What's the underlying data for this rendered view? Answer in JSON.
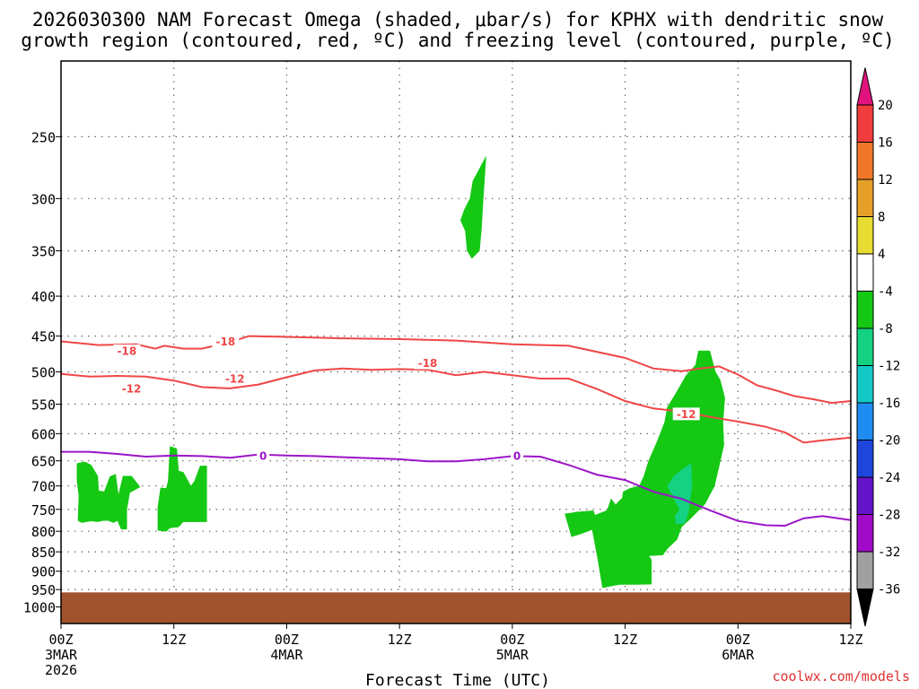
{
  "title_line1": "2026030300 NAM Forecast Omega (shaded, μbar/s) for KPHX with dendritic snow",
  "title_line2": "growth region (contoured, red, ºC) and freezing level (contoured, purple, ºC)",
  "credit": "coolwx.com/models",
  "chart_data": {
    "type": "area",
    "title": "2026030300 NAM Forecast Omega (shaded, μbar/s) for KPHX with dendritic snow growth region (contoured, red, ºC) and freezing level (contoured, purple, ºC)",
    "xlabel": "Forecast Time (UTC)",
    "ylabel": "",
    "x_range_hours": [
      0,
      84
    ],
    "y_axis": {
      "scale": "log",
      "reversed": true,
      "units": "hPa",
      "range": [
        1050,
        200
      ]
    },
    "grid": true,
    "x_ticks": [
      {
        "hour": 0,
        "line1": "00Z",
        "line2": "3MAR",
        "line3": "2026"
      },
      {
        "hour": 12,
        "line1": "12Z",
        "line2": "",
        "line3": ""
      },
      {
        "hour": 24,
        "line1": "00Z",
        "line2": "4MAR",
        "line3": ""
      },
      {
        "hour": 36,
        "line1": "12Z",
        "line2": "",
        "line3": ""
      },
      {
        "hour": 48,
        "line1": "00Z",
        "line2": "5MAR",
        "line3": ""
      },
      {
        "hour": 60,
        "line1": "12Z",
        "line2": "",
        "line3": ""
      },
      {
        "hour": 72,
        "line1": "00Z",
        "line2": "6MAR",
        "line3": ""
      },
      {
        "hour": 84,
        "line1": "12Z",
        "line2": "",
        "line3": ""
      }
    ],
    "y_ticks": [
      250,
      300,
      350,
      400,
      450,
      500,
      550,
      600,
      650,
      700,
      750,
      800,
      850,
      900,
      950,
      1000
    ],
    "colorbar": {
      "labels": [
        "20",
        "16",
        "12",
        "8",
        "4",
        "-4",
        "-8",
        "-12",
        "-16",
        "-20",
        "-24",
        "-28",
        "-32",
        "-36"
      ],
      "colors": [
        "#e0147c",
        "#f03c3c",
        "#f07828",
        "#e6a028",
        "#e6dc32",
        "#ffffff",
        "#14c814",
        "#14d282",
        "#14c8c8",
        "#1e8cf0",
        "#1e46dc",
        "#6414c8",
        "#a00ac8",
        "#a0a0a0",
        "#000000"
      ]
    },
    "contours": [
      {
        "color": "#f04646",
        "label": "-18",
        "label_points": [
          [
            7,
            470
          ],
          [
            17.5,
            457
          ],
          [
            39,
            487
          ]
        ],
        "points": [
          [
            0,
            457
          ],
          [
            4,
            462
          ],
          [
            8,
            461
          ],
          [
            10,
            467
          ],
          [
            11,
            463
          ],
          [
            13,
            467
          ],
          [
            15,
            467
          ],
          [
            18,
            458
          ],
          [
            20,
            450
          ],
          [
            24,
            451
          ],
          [
            30,
            453
          ],
          [
            36,
            454
          ],
          [
            42,
            456
          ],
          [
            48,
            461
          ],
          [
            54,
            463
          ],
          [
            60,
            480
          ],
          [
            63,
            495
          ],
          [
            66,
            499
          ],
          [
            68,
            495
          ],
          [
            70,
            492
          ],
          [
            72,
            504
          ],
          [
            74,
            520
          ],
          [
            76,
            528
          ],
          [
            78,
            537
          ],
          [
            80,
            542
          ],
          [
            82,
            548
          ],
          [
            84,
            545
          ]
        ]
      },
      {
        "color": "#f04646",
        "label": "-12",
        "label_points": [
          [
            7.5,
            525
          ],
          [
            18.5,
            510
          ],
          [
            66.5,
            566
          ]
        ],
        "points": [
          [
            0,
            503
          ],
          [
            3,
            507
          ],
          [
            6,
            506
          ],
          [
            9,
            507
          ],
          [
            12,
            513
          ],
          [
            15,
            523
          ],
          [
            18,
            525
          ],
          [
            21,
            519
          ],
          [
            24,
            508
          ],
          [
            27,
            498
          ],
          [
            30,
            495
          ],
          [
            33,
            497
          ],
          [
            36,
            496
          ],
          [
            39,
            497
          ],
          [
            42,
            505
          ],
          [
            45,
            500
          ],
          [
            48,
            505
          ],
          [
            51,
            510
          ],
          [
            54,
            510
          ],
          [
            57,
            526
          ],
          [
            60,
            545
          ],
          [
            63,
            557
          ],
          [
            66,
            562
          ],
          [
            69,
            571
          ],
          [
            72,
            579
          ],
          [
            75,
            588
          ],
          [
            77,
            598
          ],
          [
            79,
            616
          ],
          [
            81,
            612
          ],
          [
            84,
            607
          ]
        ]
      },
      {
        "color": "#9c14c8",
        "label": "0",
        "label_points": [
          [
            21.5,
            640
          ],
          [
            48.5,
            640
          ]
        ],
        "points": [
          [
            0,
            633
          ],
          [
            3,
            633
          ],
          [
            6,
            637
          ],
          [
            9,
            642
          ],
          [
            12,
            640
          ],
          [
            15,
            641
          ],
          [
            18,
            644
          ],
          [
            21,
            638
          ],
          [
            24,
            640
          ],
          [
            27,
            641
          ],
          [
            30,
            643
          ],
          [
            33,
            645
          ],
          [
            36,
            647
          ],
          [
            39,
            651
          ],
          [
            42,
            651
          ],
          [
            45,
            647
          ],
          [
            48,
            641
          ],
          [
            51,
            642
          ],
          [
            54,
            658
          ],
          [
            57,
            677
          ],
          [
            60,
            688
          ],
          [
            63,
            712
          ],
          [
            66,
            727
          ],
          [
            69,
            752
          ],
          [
            72,
            776
          ],
          [
            75,
            786
          ],
          [
            77,
            787
          ],
          [
            79,
            770
          ],
          [
            81,
            765
          ],
          [
            84,
            774
          ]
        ]
      }
    ],
    "shaded_regions": [
      {
        "label": "-4",
        "color": "#14c814",
        "points": [
          [
            1.7,
            655
          ],
          [
            2.5,
            652
          ],
          [
            3.2,
            658
          ],
          [
            3.9,
            680
          ],
          [
            4.0,
            710
          ],
          [
            4.6,
            712
          ],
          [
            5.2,
            681
          ],
          [
            5.8,
            676
          ],
          [
            6.1,
            720
          ],
          [
            6.6,
            680
          ],
          [
            7.5,
            680
          ],
          [
            8.4,
            702
          ],
          [
            7.3,
            714
          ],
          [
            7.0,
            750
          ],
          [
            7.0,
            795
          ],
          [
            6.4,
            795
          ],
          [
            6.0,
            775
          ],
          [
            5.6,
            780
          ],
          [
            5.0,
            775
          ],
          [
            4.5,
            775
          ],
          [
            3.9,
            778
          ],
          [
            3.2,
            776
          ],
          [
            2.7,
            778
          ],
          [
            2.2,
            780
          ],
          [
            1.8,
            775
          ],
          [
            1.9,
            720
          ],
          [
            1.7,
            690
          ]
        ]
      },
      {
        "label": "-4",
        "color": "#14c814",
        "points": [
          [
            10.6,
            704
          ],
          [
            11.2,
            705
          ],
          [
            11.4,
            690
          ],
          [
            11.6,
            623
          ],
          [
            12.3,
            627
          ],
          [
            12.5,
            670
          ],
          [
            13.0,
            672
          ],
          [
            13.8,
            700
          ],
          [
            14.2,
            690
          ],
          [
            14.8,
            660
          ],
          [
            15.5,
            660
          ],
          [
            15.5,
            778
          ],
          [
            14.0,
            778
          ],
          [
            13.0,
            778
          ],
          [
            12.5,
            790
          ],
          [
            11.6,
            792
          ],
          [
            11.2,
            800
          ],
          [
            10.3,
            798
          ],
          [
            10.3,
            745
          ]
        ]
      },
      {
        "label": "-4",
        "color": "#14c814",
        "points": [
          [
            45.2,
            265
          ],
          [
            44.9,
            300
          ],
          [
            44.7,
            330
          ],
          [
            44.5,
            350
          ],
          [
            43.7,
            358
          ],
          [
            43.2,
            350
          ],
          [
            43.0,
            330
          ],
          [
            42.5,
            320
          ],
          [
            42.9,
            310
          ],
          [
            43.5,
            300
          ],
          [
            43.8,
            285
          ]
        ]
      },
      {
        "label": "-4",
        "color": "#14c814",
        "points": [
          [
            58.5,
            727
          ],
          [
            58.1,
            752
          ],
          [
            56.8,
            763
          ],
          [
            56.6,
            753
          ],
          [
            54.8,
            756
          ],
          [
            54.3,
            758
          ],
          [
            53.6,
            760
          ],
          [
            54.3,
            813
          ],
          [
            55.3,
            806
          ],
          [
            56.5,
            796
          ],
          [
            57.1,
            870
          ],
          [
            57.6,
            945
          ],
          [
            58.5,
            940
          ],
          [
            59.4,
            936
          ],
          [
            61.3,
            936
          ],
          [
            62.8,
            935
          ],
          [
            62.8,
            870
          ],
          [
            62.5,
            860
          ],
          [
            64.0,
            858
          ],
          [
            64.5,
            842
          ],
          [
            65.5,
            820
          ],
          [
            66.0,
            790
          ],
          [
            67.0,
            770
          ],
          [
            68.5,
            738
          ],
          [
            69.5,
            700
          ],
          [
            70.0,
            660
          ],
          [
            70.5,
            620
          ],
          [
            70.4,
            580
          ],
          [
            70.6,
            540
          ],
          [
            70.1,
            512
          ],
          [
            69.6,
            500
          ],
          [
            69.0,
            470
          ],
          [
            67.8,
            470
          ],
          [
            67.5,
            490
          ],
          [
            66.5,
            505
          ],
          [
            65.5,
            530
          ],
          [
            64.5,
            555
          ],
          [
            64.2,
            580
          ],
          [
            63.5,
            610
          ],
          [
            62.5,
            650
          ],
          [
            62.0,
            680
          ],
          [
            61.5,
            700
          ],
          [
            60.5,
            705
          ],
          [
            59.8,
            712
          ],
          [
            59.7,
            725
          ],
          [
            59.2,
            735
          ],
          [
            59.0,
            740
          ]
        ]
      },
      {
        "label": "-8",
        "color": "#14d282",
        "points": [
          [
            65.8,
            750
          ],
          [
            65.5,
            740
          ],
          [
            65.0,
            720
          ],
          [
            64.5,
            700
          ],
          [
            65.2,
            680
          ],
          [
            66.0,
            668
          ],
          [
            67.0,
            655
          ],
          [
            67.1,
            700
          ],
          [
            66.7,
            760
          ],
          [
            66.3,
            782
          ],
          [
            65.4,
            782
          ],
          [
            65.3,
            765
          ]
        ]
      }
    ]
  }
}
